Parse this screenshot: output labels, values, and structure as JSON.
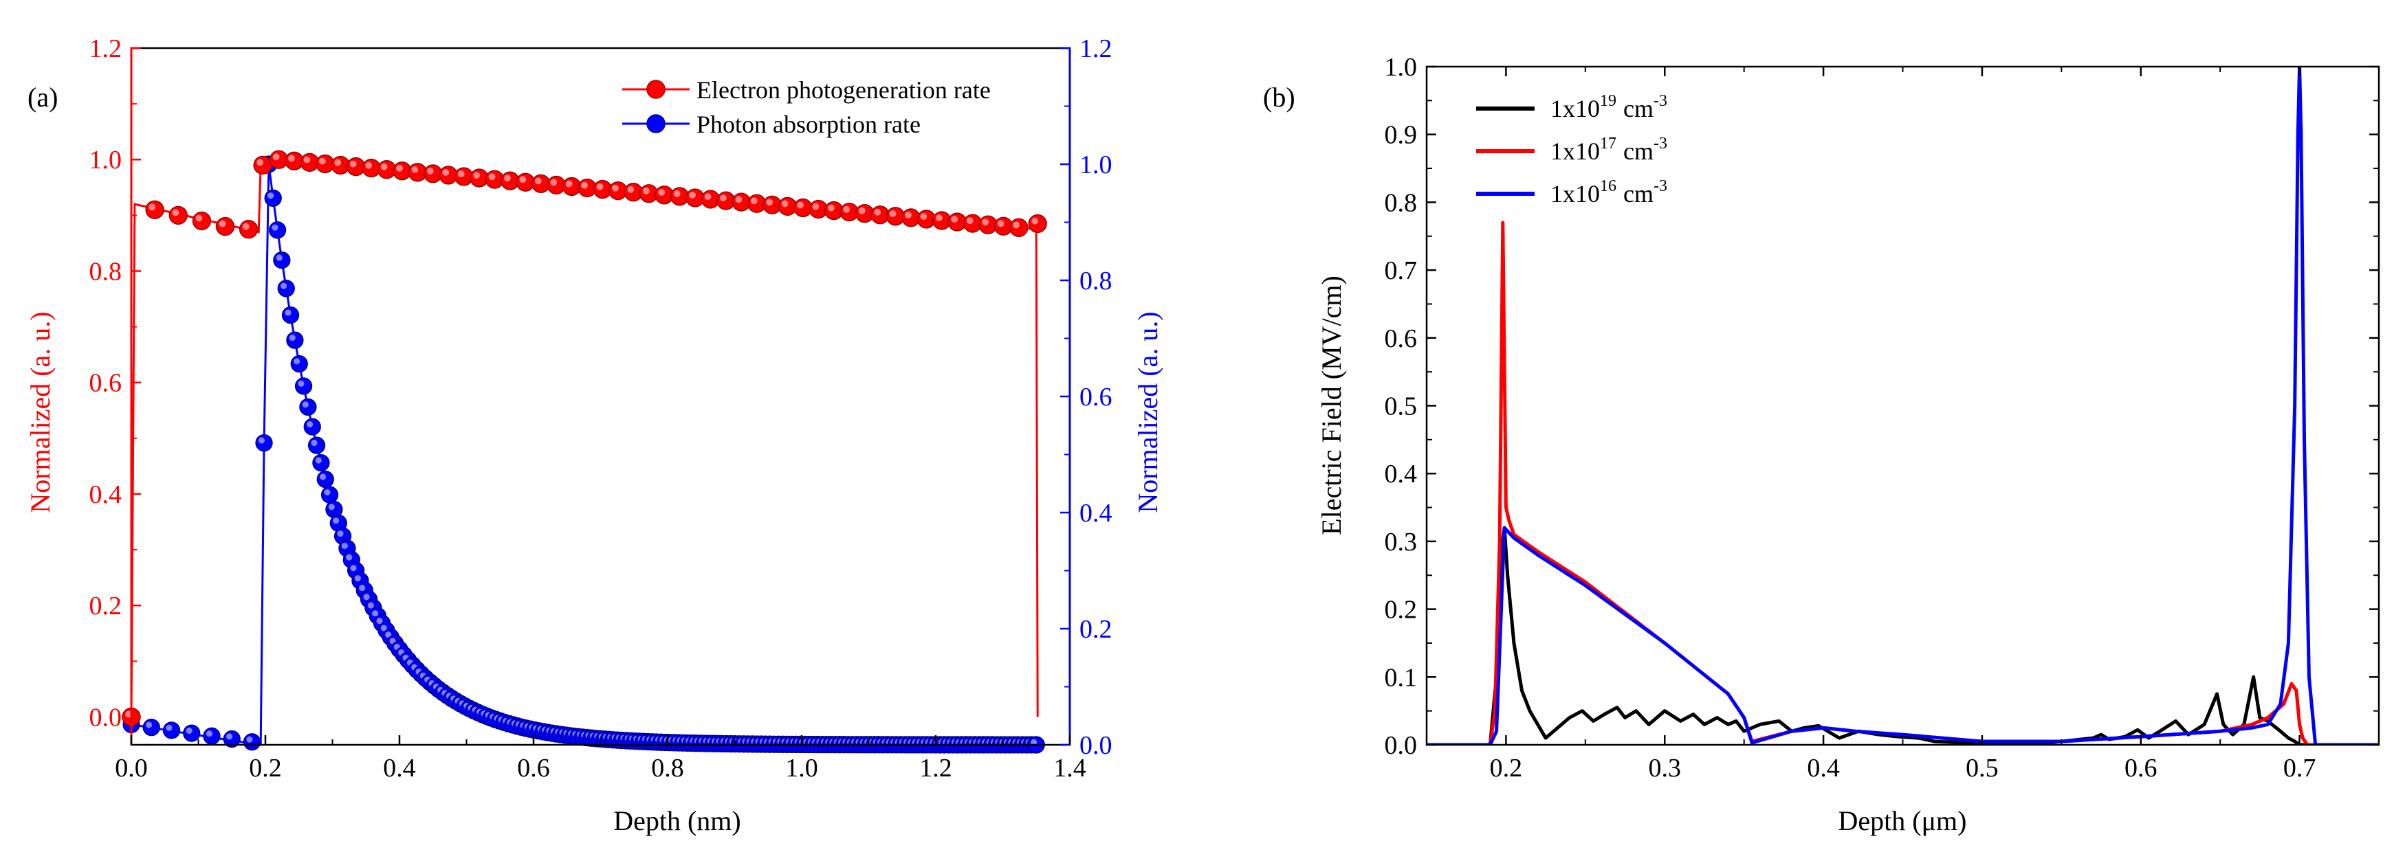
{
  "chart_data": [
    {
      "panel_label": "(a)",
      "type": "line",
      "xlabel": "Depth (nm)",
      "ylabel_left": "Normalized (a. u.)",
      "ylabel_right": "Normalized (a. u.)",
      "xlim": [
        0.0,
        1.4
      ],
      "ylim_left": [
        -0.05,
        1.2
      ],
      "ylim_right": [
        0.0,
        1.2
      ],
      "xticks": [
        "0.0",
        "0.2",
        "0.4",
        "0.6",
        "0.8",
        "1.0",
        "1.2",
        "1.4"
      ],
      "yticks_left": [
        "0.0",
        "0.2",
        "0.4",
        "0.6",
        "0.8",
        "1.0",
        "1.2"
      ],
      "yticks_right": [
        "0.0",
        "0.2",
        "0.4",
        "0.6",
        "0.8",
        "1.0",
        "1.2"
      ],
      "legend_position": "top-right",
      "colors": {
        "left_axis": "#ff0000",
        "right_axis": "#0000ff"
      },
      "series": [
        {
          "name": "Electron photogeneration rate",
          "axis": "left",
          "color": "#ff0000",
          "line_x": [
            0.0,
            0.005,
            0.19,
            0.193,
            0.2,
            0.21,
            0.22,
            1.35,
            1.352
          ],
          "line_y": [
            0.0,
            0.92,
            0.87,
            0.99,
            0.99,
            1.0,
            1.0,
            0.875,
            0.0
          ],
          "marker_x": [
            0.0,
            0.035,
            0.07,
            0.105,
            0.14,
            0.175,
            0.196,
            0.22
          ],
          "marker_y": [
            0.0,
            0.91,
            0.9,
            0.89,
            0.88,
            0.875,
            0.99,
            1.0
          ],
          "marker_range": {
            "x_start": 0.22,
            "x_end": 1.35,
            "y_start": 1.0,
            "y_end": 0.875,
            "step": 0.023
          },
          "end_marker": [
            1.352,
            0.885
          ]
        },
        {
          "name": "Photon absorption rate",
          "axis": "right",
          "color": "#0000ff",
          "line_x": [
            0.0,
            0.19,
            0.193,
            0.198,
            0.205
          ],
          "line_y": [
            0.035,
            0.0,
            0.0,
            0.52,
            1.0
          ],
          "marker_x": [
            0.0,
            0.03,
            0.06,
            0.09,
            0.12,
            0.15,
            0.18,
            0.198,
            0.205
          ],
          "marker_y": [
            0.035,
            0.03,
            0.025,
            0.02,
            0.015,
            0.01,
            0.005,
            0.52,
            1.0
          ],
          "decay": {
            "x_start": 0.205,
            "x_end": 1.35,
            "y_peak": 1.0,
            "length_nm": 0.108,
            "step": 0.0065
          },
          "end_marker": [
            1.35,
            0.0
          ]
        }
      ]
    },
    {
      "panel_label": "(b)",
      "type": "line",
      "xlabel": "Depth (μm)",
      "ylabel": "Electric Field (MV/cm)",
      "xlim": [
        0.15,
        0.75
      ],
      "ylim": [
        0.0,
        1.0
      ],
      "xticks": [
        "0.2",
        "0.3",
        "0.4",
        "0.5",
        "0.6",
        "0.7"
      ],
      "yticks": [
        "0.0",
        "0.1",
        "0.2",
        "0.3",
        "0.4",
        "0.5",
        "0.6",
        "0.7",
        "0.8",
        "0.9",
        "1.0"
      ],
      "legend_position": "top-left",
      "legend_unit": "cm",
      "legend_unit_exp": "-3",
      "series": [
        {
          "name": "1x10^19 cm^-3",
          "base": "1x10",
          "exp": "19",
          "color": "#000000",
          "x": [
            0.15,
            0.19,
            0.194,
            0.197,
            0.199,
            0.201,
            0.205,
            0.21,
            0.215,
            0.22,
            0.225,
            0.23,
            0.24,
            0.248,
            0.255,
            0.262,
            0.27,
            0.275,
            0.282,
            0.29,
            0.3,
            0.31,
            0.318,
            0.325,
            0.333,
            0.34,
            0.345,
            0.35,
            0.36,
            0.372,
            0.38,
            0.388,
            0.397,
            0.41,
            0.422,
            0.435,
            0.447,
            0.46,
            0.47,
            0.5,
            0.53,
            0.55,
            0.57,
            0.575,
            0.58,
            0.59,
            0.598,
            0.605,
            0.612,
            0.622,
            0.63,
            0.64,
            0.648,
            0.652,
            0.658,
            0.665,
            0.671,
            0.675,
            0.68,
            0.688,
            0.693,
            0.697,
            0.7,
            0.705,
            0.75
          ],
          "y": [
            0.0,
            0.0,
            0.1,
            0.28,
            0.32,
            0.25,
            0.15,
            0.08,
            0.05,
            0.03,
            0.01,
            0.02,
            0.04,
            0.05,
            0.035,
            0.045,
            0.055,
            0.04,
            0.05,
            0.03,
            0.05,
            0.035,
            0.045,
            0.03,
            0.04,
            0.03,
            0.035,
            0.02,
            0.03,
            0.035,
            0.02,
            0.025,
            0.028,
            0.01,
            0.02,
            0.015,
            0.012,
            0.01,
            0.005,
            0.002,
            0.0,
            0.005,
            0.01,
            0.015,
            0.008,
            0.012,
            0.022,
            0.01,
            0.02,
            0.035,
            0.015,
            0.03,
            0.075,
            0.03,
            0.015,
            0.03,
            0.1,
            0.04,
            0.035,
            0.02,
            0.01,
            0.005,
            0.0,
            0.0,
            0.0
          ]
        },
        {
          "name": "1x10^17 cm^-3",
          "base": "1x10",
          "exp": "17",
          "color": "#ff0000",
          "x": [
            0.15,
            0.19,
            0.193,
            0.196,
            0.198,
            0.2,
            0.202,
            0.205,
            0.22,
            0.25,
            0.3,
            0.34,
            0.35,
            0.355,
            0.38,
            0.4,
            0.42,
            0.45,
            0.5,
            0.55,
            0.6,
            0.65,
            0.67,
            0.68,
            0.69,
            0.695,
            0.698,
            0.7,
            0.702,
            0.705,
            0.75
          ],
          "y": [
            0.0,
            0.0,
            0.05,
            0.3,
            0.77,
            0.35,
            0.33,
            0.31,
            0.285,
            0.24,
            0.15,
            0.075,
            0.04,
            0.005,
            0.02,
            0.025,
            0.02,
            0.015,
            0.005,
            0.005,
            0.012,
            0.02,
            0.03,
            0.04,
            0.06,
            0.09,
            0.08,
            0.03,
            0.01,
            0.0,
            0.0
          ]
        },
        {
          "name": "1x10^16 cm^-3",
          "base": "1x10",
          "exp": "16",
          "color": "#0000ff",
          "x": [
            0.15,
            0.19,
            0.194,
            0.197,
            0.199,
            0.201,
            0.205,
            0.22,
            0.25,
            0.3,
            0.34,
            0.35,
            0.355,
            0.38,
            0.4,
            0.42,
            0.45,
            0.5,
            0.55,
            0.6,
            0.65,
            0.67,
            0.68,
            0.688,
            0.693,
            0.697,
            0.699,
            0.7,
            0.701,
            0.703,
            0.706,
            0.71,
            0.75
          ],
          "y": [
            0.0,
            0.0,
            0.02,
            0.2,
            0.32,
            0.315,
            0.305,
            0.28,
            0.235,
            0.15,
            0.075,
            0.04,
            0.003,
            0.02,
            0.025,
            0.02,
            0.015,
            0.005,
            0.005,
            0.012,
            0.02,
            0.025,
            0.03,
            0.06,
            0.15,
            0.5,
            0.9,
            1.0,
            0.9,
            0.45,
            0.1,
            0.0,
            0.0
          ]
        }
      ]
    }
  ]
}
